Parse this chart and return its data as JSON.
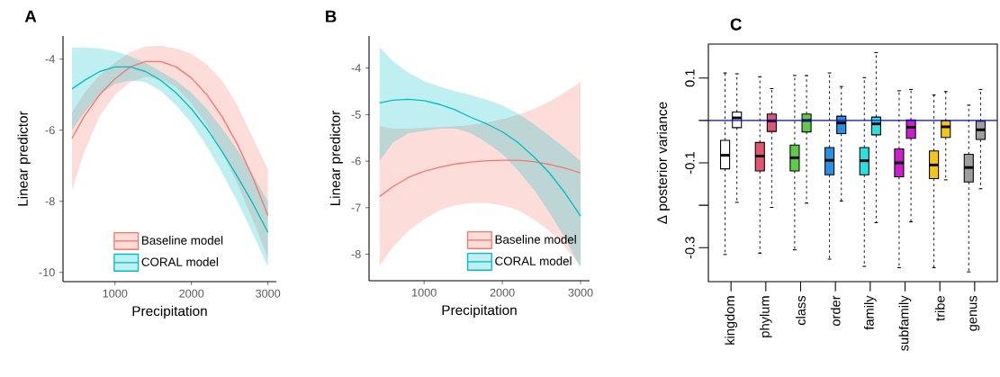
{
  "chart_data": [
    {
      "type": "line",
      "title": "A",
      "xlabel": "Precipitation",
      "ylabel": "Linear predictor",
      "x": [
        437,
        600,
        800,
        1000,
        1200,
        1400,
        1600,
        1800,
        2000,
        2200,
        2400,
        2600,
        2800,
        3000
      ],
      "series": [
        {
          "name": "Baseline model",
          "color": "#f8766d",
          "values": [
            -6.23,
            -5.6,
            -5.0,
            -4.55,
            -4.22,
            -4.07,
            -4.07,
            -4.22,
            -4.53,
            -5.0,
            -5.62,
            -6.39,
            -7.32,
            -8.4
          ],
          "upper": [
            -5.5,
            -4.95,
            -4.45,
            -4.1,
            -3.8,
            -3.65,
            -3.63,
            -3.7,
            -3.85,
            -4.15,
            -4.6,
            -5.3,
            -6.2,
            -7.1
          ],
          "lower": [
            -7.7,
            -6.6,
            -5.6,
            -5.0,
            -4.65,
            -4.5,
            -4.55,
            -4.8,
            -5.25,
            -5.85,
            -6.6,
            -7.5,
            -8.5,
            -9.6
          ]
        },
        {
          "name": "CORAL model",
          "color": "#00bfc4",
          "values": [
            -4.84,
            -4.6,
            -4.35,
            -4.22,
            -4.22,
            -4.35,
            -4.6,
            -4.95,
            -5.4,
            -5.95,
            -6.6,
            -7.3,
            -8.05,
            -8.87
          ],
          "upper": [
            -3.68,
            -3.68,
            -3.7,
            -3.78,
            -3.92,
            -4.1,
            -4.35,
            -4.6,
            -4.95,
            -5.4,
            -5.95,
            -6.55,
            -7.25,
            -8.0
          ],
          "lower": [
            -6.0,
            -5.5,
            -5.0,
            -4.7,
            -4.6,
            -4.65,
            -4.9,
            -5.3,
            -5.8,
            -6.45,
            -7.2,
            -8.0,
            -8.9,
            -9.85
          ]
        }
      ],
      "xlim": [
        320,
        3110
      ],
      "ylim": [
        -10.26,
        -3.35
      ],
      "xticks": [
        1000,
        2000,
        3000
      ],
      "yticks": [
        -10,
        -8,
        -6,
        -4
      ],
      "legend": "bottom"
    },
    {
      "type": "line",
      "title": "B",
      "xlabel": "Precipitation",
      "ylabel": "Linear predictor",
      "x": [
        431,
        600,
        800,
        1000,
        1200,
        1400,
        1600,
        1800,
        2000,
        2200,
        2400,
        2600,
        2800,
        3000
      ],
      "series": [
        {
          "name": "Baseline model",
          "color": "#f8766d",
          "values": [
            -6.76,
            -6.55,
            -6.35,
            -6.22,
            -6.13,
            -6.06,
            -6.02,
            -5.99,
            -5.98,
            -5.98,
            -6.01,
            -6.07,
            -6.15,
            -6.25
          ],
          "upper": [
            -5.25,
            -5.3,
            -5.3,
            -5.28,
            -5.27,
            -5.25,
            -5.22,
            -5.17,
            -5.1,
            -5.0,
            -4.88,
            -4.72,
            -4.52,
            -4.3
          ],
          "lower": [
            -8.25,
            -7.85,
            -7.5,
            -7.25,
            -7.05,
            -6.95,
            -6.9,
            -6.9,
            -6.95,
            -7.05,
            -7.25,
            -7.5,
            -7.85,
            -8.25
          ]
        },
        {
          "name": "CORAL model",
          "color": "#00bfc4",
          "values": [
            -4.75,
            -4.69,
            -4.67,
            -4.7,
            -4.78,
            -4.9,
            -5.06,
            -5.2,
            -5.37,
            -5.6,
            -5.9,
            -6.25,
            -6.68,
            -7.18
          ],
          "upper": [
            -3.55,
            -3.85,
            -4.1,
            -4.28,
            -4.4,
            -4.5,
            -4.58,
            -4.68,
            -4.8,
            -4.98,
            -5.2,
            -5.45,
            -5.72,
            -6.0
          ],
          "lower": [
            -6.0,
            -5.6,
            -5.4,
            -5.35,
            -5.3,
            -5.3,
            -5.4,
            -5.6,
            -5.85,
            -6.2,
            -6.6,
            -7.1,
            -7.65,
            -8.3
          ]
        }
      ],
      "xlim": [
        296,
        3115
      ],
      "ylim": [
        -8.57,
        -3.31
      ],
      "xticks": [
        1000,
        2000,
        3000
      ],
      "yticks": [
        -8,
        -7,
        -6,
        -5,
        -4
      ],
      "legend": "bottom right"
    },
    {
      "type": "box",
      "title": "C",
      "ylabel": "Δ posterior variance",
      "categories": [
        "kingdom",
        "phylum",
        "class",
        "order",
        "family",
        "subfamily",
        "tribe",
        "genus"
      ],
      "series": [
        {
          "colors": [
            "#ffffff",
            "#e15570",
            "#5fcb4b",
            "#2a8fe0",
            "#2de0e0",
            "#cc1fcc",
            "#f5c518",
            "#9e9e9e"
          ],
          "boxes": [
            {
              "low": -0.316,
              "q1": -0.114,
              "median": -0.082,
              "q3": -0.047,
              "high": 0.112
            },
            {
              "low": -0.313,
              "q1": -0.119,
              "median": -0.084,
              "q3": -0.052,
              "high": 0.103
            },
            {
              "low": -0.305,
              "q1": -0.119,
              "median": -0.088,
              "q3": -0.058,
              "high": 0.106
            },
            {
              "low": -0.327,
              "q1": -0.128,
              "median": -0.094,
              "q3": -0.064,
              "high": 0.112
            },
            {
              "low": -0.344,
              "q1": -0.128,
              "median": -0.095,
              "q3": -0.064,
              "high": 0.101
            },
            {
              "low": -0.347,
              "q1": -0.133,
              "median": -0.1,
              "q3": -0.067,
              "high": 0.07
            },
            {
              "low": -0.347,
              "q1": -0.137,
              "median": -0.105,
              "q3": -0.072,
              "high": 0.06
            },
            {
              "low": -0.357,
              "q1": -0.145,
              "median": -0.111,
              "q3": -0.08,
              "high": 0.036
            }
          ]
        },
        {
          "colors": [
            "#ffffff",
            "#e15570",
            "#5fcb4b",
            "#2a8fe0",
            "#2de0e0",
            "#cc1fcc",
            "#f5c518",
            "#9e9e9e"
          ],
          "boxes": [
            {
              "low": -0.193,
              "q1": -0.017,
              "median": 0.006,
              "q3": 0.02,
              "high": 0.11
            },
            {
              "low": -0.205,
              "q1": -0.026,
              "median": -0.001,
              "q3": 0.015,
              "high": 0.075
            },
            {
              "low": -0.195,
              "q1": -0.027,
              "median": 0.0,
              "q3": 0.015,
              "high": 0.106
            },
            {
              "low": -0.19,
              "q1": -0.031,
              "median": -0.006,
              "q3": 0.01,
              "high": 0.08
            },
            {
              "low": -0.241,
              "q1": -0.034,
              "median": -0.008,
              "q3": 0.008,
              "high": 0.16
            },
            {
              "low": -0.239,
              "q1": -0.042,
              "median": -0.016,
              "q3": 0.001,
              "high": 0.073
            },
            {
              "low": -0.14,
              "q1": -0.04,
              "median": -0.015,
              "q3": -0.001,
              "high": 0.068
            },
            {
              "low": -0.161,
              "q1": -0.045,
              "median": -0.022,
              "q3": -0.002,
              "high": 0.073
            }
          ]
        }
      ],
      "ylim": [
        -0.38,
        0.18
      ],
      "yticks": [
        {
          "value": -0.3,
          "label": "-0.3"
        },
        {
          "value": -0.2,
          "label": null
        },
        {
          "value": -0.1,
          "label": "-0.1"
        },
        {
          "value": 0,
          "label": null
        },
        {
          "value": 0.1,
          "label": "0.1"
        }
      ],
      "ref_lines": [
        {
          "axis": "y",
          "value": 0,
          "color": "#0000ff"
        }
      ]
    }
  ]
}
